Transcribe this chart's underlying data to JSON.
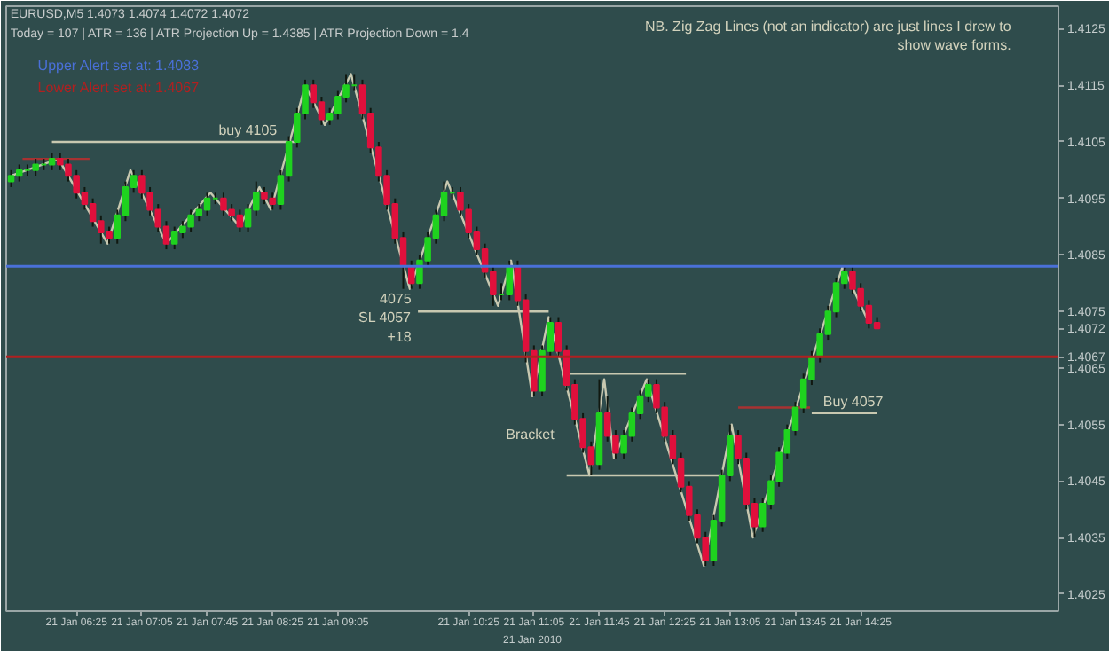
{
  "chart_data": {
    "type": "candlestick",
    "title": "EURUSD,M5  1.4073 1.4074 1.4072 1.4072",
    "subtitle": "Today = 107  |  ATR = 136  |  ATR Projection Up = 1.4385  |  ATR Projection Down = 1.4",
    "x": [
      "2010-01-21T05:45",
      "2010-01-21T05:50",
      "2010-01-21T05:55",
      "2010-01-21T06:00",
      "2010-01-21T06:05",
      "2010-01-21T06:10",
      "2010-01-21T06:15",
      "2010-01-21T06:20",
      "2010-01-21T06:25",
      "2010-01-21T06:30",
      "2010-01-21T06:35",
      "2010-01-21T06:40",
      "2010-01-21T06:45",
      "2010-01-21T06:50",
      "2010-01-21T06:55",
      "2010-01-21T07:00",
      "2010-01-21T07:05",
      "2010-01-21T07:10",
      "2010-01-21T07:15",
      "2010-01-21T07:20",
      "2010-01-21T07:25",
      "2010-01-21T07:30",
      "2010-01-21T07:35",
      "2010-01-21T07:40",
      "2010-01-21T07:45",
      "2010-01-21T07:50",
      "2010-01-21T07:55",
      "2010-01-21T08:00",
      "2010-01-21T08:05",
      "2010-01-21T08:10",
      "2010-01-21T08:15",
      "2010-01-21T08:20",
      "2010-01-21T08:25",
      "2010-01-21T08:30",
      "2010-01-21T08:35",
      "2010-01-21T08:40",
      "2010-01-21T08:45",
      "2010-01-21T08:50",
      "2010-01-21T08:55",
      "2010-01-21T09:00",
      "2010-01-21T09:05",
      "2010-01-21T09:10",
      "2010-01-21T09:15",
      "2010-01-21T09:20",
      "2010-01-21T09:25",
      "2010-01-21T09:30",
      "2010-01-21T09:35",
      "2010-01-21T09:40",
      "2010-01-21T09:45",
      "2010-01-21T09:50",
      "2010-01-21T09:55",
      "2010-01-21T10:00",
      "2010-01-21T10:05",
      "2010-01-21T10:10",
      "2010-01-21T10:15",
      "2010-01-21T10:20",
      "2010-01-21T10:25",
      "2010-01-21T10:30",
      "2010-01-21T10:35",
      "2010-01-21T10:40",
      "2010-01-21T10:45",
      "2010-01-21T10:50",
      "2010-01-21T10:55",
      "2010-01-21T11:00",
      "2010-01-21T11:05",
      "2010-01-21T11:10",
      "2010-01-21T11:15",
      "2010-01-21T11:20",
      "2010-01-21T11:25",
      "2010-01-21T11:30",
      "2010-01-21T11:35",
      "2010-01-21T11:40",
      "2010-01-21T11:45",
      "2010-01-21T11:50",
      "2010-01-21T11:55",
      "2010-01-21T12:00",
      "2010-01-21T12:05",
      "2010-01-21T12:10",
      "2010-01-21T12:15",
      "2010-01-21T12:20",
      "2010-01-21T12:25",
      "2010-01-21T12:30",
      "2010-01-21T12:35",
      "2010-01-21T12:40",
      "2010-01-21T12:45",
      "2010-01-21T12:50",
      "2010-01-21T12:55",
      "2010-01-21T13:00",
      "2010-01-21T13:05",
      "2010-01-21T13:10",
      "2010-01-21T13:15",
      "2010-01-21T13:20",
      "2010-01-21T13:25",
      "2010-01-21T13:30",
      "2010-01-21T13:35",
      "2010-01-21T13:40",
      "2010-01-21T13:45",
      "2010-01-21T13:50",
      "2010-01-21T13:55",
      "2010-01-21T14:00",
      "2010-01-21T14:05",
      "2010-01-21T14:10",
      "2010-01-21T14:15",
      "2010-01-21T14:20",
      "2010-01-21T14:25",
      "2010-01-21T14:30",
      "2010-01-21T14:35"
    ],
    "ohlc": [
      [
        1.4098,
        1.41,
        1.4097,
        1.4099
      ],
      [
        1.4099,
        1.4101,
        1.4098,
        1.41
      ],
      [
        1.41,
        1.4101,
        1.4099,
        1.41
      ],
      [
        1.41,
        1.4102,
        1.4099,
        1.4101
      ],
      [
        1.4101,
        1.4102,
        1.41,
        1.4101
      ],
      [
        1.4101,
        1.4103,
        1.41,
        1.4102
      ],
      [
        1.4102,
        1.4103,
        1.41,
        1.4101
      ],
      [
        1.4101,
        1.4102,
        1.4098,
        1.4099
      ],
      [
        1.4099,
        1.41,
        1.4095,
        1.4096
      ],
      [
        1.4096,
        1.4097,
        1.4093,
        1.4094
      ],
      [
        1.4094,
        1.4095,
        1.409,
        1.4091
      ],
      [
        1.4091,
        1.4092,
        1.4087,
        1.4089
      ],
      [
        1.4089,
        1.409,
        1.4087,
        1.4088
      ],
      [
        1.4088,
        1.4093,
        1.4087,
        1.4092
      ],
      [
        1.4092,
        1.4098,
        1.4091,
        1.4097
      ],
      [
        1.4097,
        1.41,
        1.4096,
        1.4099
      ],
      [
        1.4099,
        1.41,
        1.4095,
        1.4096
      ],
      [
        1.4096,
        1.4097,
        1.4092,
        1.4093
      ],
      [
        1.4093,
        1.4094,
        1.4089,
        1.409
      ],
      [
        1.409,
        1.4091,
        1.4086,
        1.4087
      ],
      [
        1.4087,
        1.409,
        1.4086,
        1.4089
      ],
      [
        1.4089,
        1.4091,
        1.4088,
        1.409
      ],
      [
        1.409,
        1.4093,
        1.4089,
        1.4092
      ],
      [
        1.4092,
        1.4094,
        1.4091,
        1.4093
      ],
      [
        1.4093,
        1.4096,
        1.4092,
        1.4095
      ],
      [
        1.4095,
        1.4096,
        1.4094,
        1.4095
      ],
      [
        1.4095,
        1.4096,
        1.4092,
        1.4093
      ],
      [
        1.4093,
        1.4094,
        1.4091,
        1.4092
      ],
      [
        1.4092,
        1.4093,
        1.4089,
        1.409
      ],
      [
        1.409,
        1.4094,
        1.4089,
        1.4093
      ],
      [
        1.4093,
        1.4098,
        1.4092,
        1.4096
      ],
      [
        1.4096,
        1.4097,
        1.4094,
        1.4095
      ],
      [
        1.4095,
        1.4096,
        1.4093,
        1.4094
      ],
      [
        1.4094,
        1.41,
        1.4093,
        1.4099
      ],
      [
        1.4099,
        1.4106,
        1.4098,
        1.4105
      ],
      [
        1.4105,
        1.4111,
        1.4104,
        1.411
      ],
      [
        1.411,
        1.4116,
        1.4109,
        1.4115
      ],
      [
        1.4115,
        1.4116,
        1.4111,
        1.4112
      ],
      [
        1.4112,
        1.4113,
        1.4108,
        1.4109
      ],
      [
        1.4109,
        1.4111,
        1.4108,
        1.411
      ],
      [
        1.411,
        1.4114,
        1.4109,
        1.4113
      ],
      [
        1.4113,
        1.4117,
        1.4112,
        1.4115
      ],
      [
        1.4115,
        1.4117,
        1.4114,
        1.4115
      ],
      [
        1.4115,
        1.4116,
        1.4109,
        1.411
      ],
      [
        1.411,
        1.4111,
        1.4103,
        1.4104
      ],
      [
        1.4104,
        1.4105,
        1.4098,
        1.4099
      ],
      [
        1.4099,
        1.41,
        1.4093,
        1.4094
      ],
      [
        1.4094,
        1.4095,
        1.4087,
        1.4088
      ],
      [
        1.4088,
        1.4089,
        1.4079,
        1.4083
      ],
      [
        1.4083,
        1.4084,
        1.4079,
        1.408
      ],
      [
        1.408,
        1.4085,
        1.4079,
        1.4084
      ],
      [
        1.4084,
        1.4089,
        1.4083,
        1.4088
      ],
      [
        1.4088,
        1.4093,
        1.4087,
        1.4092
      ],
      [
        1.4092,
        1.4098,
        1.4091,
        1.4096
      ],
      [
        1.4096,
        1.4097,
        1.4095,
        1.4096
      ],
      [
        1.4096,
        1.4097,
        1.4092,
        1.4093
      ],
      [
        1.4093,
        1.4094,
        1.4088,
        1.4089
      ],
      [
        1.4089,
        1.409,
        1.4085,
        1.4086
      ],
      [
        1.4086,
        1.4087,
        1.4081,
        1.4082
      ],
      [
        1.4082,
        1.4083,
        1.4076,
        1.4078
      ],
      [
        1.4078,
        1.408,
        1.4077,
        1.4078
      ],
      [
        1.4078,
        1.4084,
        1.4077,
        1.4083
      ],
      [
        1.4083,
        1.4084,
        1.4076,
        1.4077
      ],
      [
        1.4077,
        1.4078,
        1.4066,
        1.4068
      ],
      [
        1.4068,
        1.4069,
        1.406,
        1.4061
      ],
      [
        1.4061,
        1.4069,
        1.406,
        1.4068
      ],
      [
        1.4068,
        1.4074,
        1.4067,
        1.4073
      ],
      [
        1.4073,
        1.4074,
        1.4067,
        1.4068
      ],
      [
        1.4068,
        1.4069,
        1.4061,
        1.4062
      ],
      [
        1.4062,
        1.4063,
        1.4055,
        1.4056
      ],
      [
        1.4056,
        1.4057,
        1.405,
        1.4051
      ],
      [
        1.4051,
        1.4052,
        1.4046,
        1.4048
      ],
      [
        1.4048,
        1.4063,
        1.4047,
        1.4057
      ],
      [
        1.4057,
        1.406,
        1.4052,
        1.4053
      ],
      [
        1.4053,
        1.4054,
        1.4049,
        1.405
      ],
      [
        1.405,
        1.4054,
        1.4049,
        1.4053
      ],
      [
        1.4053,
        1.4058,
        1.4052,
        1.4057
      ],
      [
        1.4057,
        1.4061,
        1.4056,
        1.406
      ],
      [
        1.406,
        1.4063,
        1.4059,
        1.4062
      ],
      [
        1.4062,
        1.4063,
        1.4057,
        1.4058
      ],
      [
        1.4058,
        1.4059,
        1.4052,
        1.4053
      ],
      [
        1.4053,
        1.4054,
        1.4048,
        1.4049
      ],
      [
        1.4049,
        1.405,
        1.4043,
        1.4044
      ],
      [
        1.4044,
        1.4045,
        1.4038,
        1.4039
      ],
      [
        1.4039,
        1.404,
        1.4034,
        1.4035
      ],
      [
        1.4035,
        1.4036,
        1.403,
        1.4031
      ],
      [
        1.4031,
        1.4039,
        1.403,
        1.4038
      ],
      [
        1.4038,
        1.4047,
        1.4037,
        1.4046
      ],
      [
        1.4046,
        1.4055,
        1.4045,
        1.4053
      ],
      [
        1.4053,
        1.4054,
        1.4048,
        1.4049
      ],
      [
        1.4049,
        1.405,
        1.404,
        1.4041
      ],
      [
        1.4041,
        1.4042,
        1.4035,
        1.4037
      ],
      [
        1.4037,
        1.4042,
        1.4036,
        1.4041
      ],
      [
        1.4041,
        1.4046,
        1.404,
        1.4045
      ],
      [
        1.4045,
        1.4051,
        1.4044,
        1.405
      ],
      [
        1.405,
        1.4055,
        1.4049,
        1.4054
      ],
      [
        1.4054,
        1.4059,
        1.4053,
        1.4058
      ],
      [
        1.4058,
        1.4064,
        1.4057,
        1.4063
      ],
      [
        1.4063,
        1.4068,
        1.4062,
        1.4067
      ],
      [
        1.4067,
        1.4072,
        1.4066,
        1.4071
      ],
      [
        1.4071,
        1.4076,
        1.407,
        1.4075
      ],
      [
        1.4075,
        1.4081,
        1.4074,
        1.408
      ],
      [
        1.408,
        1.4083,
        1.4079,
        1.4082
      ],
      [
        1.4082,
        1.4083,
        1.4078,
        1.4079
      ],
      [
        1.4079,
        1.408,
        1.4075,
        1.4076
      ],
      [
        1.4076,
        1.4077,
        1.4072,
        1.4073
      ],
      [
        1.4073,
        1.4074,
        1.4072,
        1.4072
      ]
    ],
    "colors": [
      "#1fd21f",
      "#1fd21f",
      "#1fd21f",
      "#1fd21f",
      "#1fd21f",
      "#1fd21f",
      "#e0103c",
      "#e0103c",
      "#e0103c",
      "#e0103c",
      "#e0103c",
      "#e0103c",
      "#e0103c",
      "#1fd21f",
      "#1fd21f",
      "#1fd21f",
      "#e0103c",
      "#e0103c",
      "#e0103c",
      "#e0103c",
      "#1fd21f",
      "#1fd21f",
      "#1fd21f",
      "#1fd21f",
      "#1fd21f",
      "#1fd21f",
      "#e0103c",
      "#e0103c",
      "#e0103c",
      "#1fd21f",
      "#1fd21f",
      "#e0103c",
      "#e0103c",
      "#1fd21f",
      "#1fd21f",
      "#1fd21f",
      "#1fd21f",
      "#e0103c",
      "#e0103c",
      "#1fd21f",
      "#1fd21f",
      "#1fd21f",
      "#1fd21f",
      "#e0103c",
      "#e0103c",
      "#e0103c",
      "#e0103c",
      "#e0103c",
      "#e0103c",
      "#e0103c",
      "#1fd21f",
      "#1fd21f",
      "#1fd21f",
      "#1fd21f",
      "#1fd21f",
      "#e0103c",
      "#e0103c",
      "#e0103c",
      "#e0103c",
      "#e0103c",
      "#1fd21f",
      "#1fd21f",
      "#e0103c",
      "#e0103c",
      "#e0103c",
      "#1fd21f",
      "#1fd21f",
      "#e0103c",
      "#e0103c",
      "#e0103c",
      "#e0103c",
      "#e0103c",
      "#1fd21f",
      "#e0103c",
      "#e0103c",
      "#1fd21f",
      "#1fd21f",
      "#1fd21f",
      "#1fd21f",
      "#e0103c",
      "#e0103c",
      "#e0103c",
      "#e0103c",
      "#e0103c",
      "#e0103c",
      "#e0103c",
      "#1fd21f",
      "#1fd21f",
      "#1fd21f",
      "#e0103c",
      "#e0103c",
      "#e0103c",
      "#1fd21f",
      "#1fd21f",
      "#1fd21f",
      "#1fd21f",
      "#1fd21f",
      "#1fd21f",
      "#1fd21f",
      "#1fd21f",
      "#1fd21f",
      "#1fd21f",
      "#1fd21f",
      "#e0103c",
      "#e0103c",
      "#e0103c",
      "#e0103c"
    ],
    "xlabel": "21 Jan 2010",
    "series": [
      {
        "type": "line",
        "color": "#c8c8b0",
        "x": [
          "2010-01-21T05:45",
          "2010-01-21T06:14",
          "2010-01-21T06:44",
          "2010-01-21T06:58",
          "2010-01-21T07:20",
          "2010-01-21T07:47",
          "2010-01-21T08:05",
          "2010-01-21T08:17",
          "2010-01-21T08:24",
          "2010-01-21T08:45",
          "2010-01-21T08:57",
          "2010-01-21T09:13",
          "2010-01-21T09:49",
          "2010-01-21T10:12",
          "2010-01-21T10:43",
          "2010-01-21T10:51",
          "2010-01-21T11:04",
          "2010-01-21T11:14",
          "2010-01-21T11:39",
          "2010-01-21T11:48",
          "2010-01-21T11:54",
          "2010-01-21T12:14",
          "2010-01-21T12:49",
          "2010-01-21T13:06",
          "2010-01-21T13:19",
          "2010-01-21T14:14",
          "2010-01-21T14:30"
        ],
        "values": [
          1.4099,
          1.4102,
          1.4087,
          1.41,
          1.4087,
          1.4096,
          1.409,
          1.4097,
          1.4093,
          1.4115,
          1.4108,
          1.4117,
          1.4079,
          1.4098,
          1.4076,
          1.4084,
          1.406,
          1.4074,
          1.4046,
          1.4063,
          1.4049,
          1.4063,
          1.403,
          1.4055,
          1.4035,
          1.4083,
          1.4073
        ]
      },
      {
        "type": "line",
        "color": "#a83232",
        "x": [
          "2010-01-21T05:52",
          "2010-01-21T06:33"
        ],
        "values": [
          1.4102,
          1.4102
        ]
      },
      {
        "type": "line",
        "color": "#c8c8b0",
        "x": [
          "2010-01-21T06:10",
          "2010-01-21T08:40"
        ],
        "values": [
          1.4105,
          1.4105
        ]
      },
      {
        "type": "line",
        "color": "#c8c8b0",
        "x": [
          "2010-01-21T09:54",
          "2010-01-21T11:14"
        ],
        "values": [
          1.4075,
          1.4075
        ]
      },
      {
        "type": "line",
        "color": "#c8c8b0",
        "x": [
          "2010-01-21T11:22",
          "2010-01-21T12:38"
        ],
        "values": [
          1.4064,
          1.4064
        ]
      },
      {
        "type": "line",
        "color": "#c8c8b0",
        "x": [
          "2010-01-21T11:25",
          "2010-01-21T12:59"
        ],
        "values": [
          1.4046,
          1.4046
        ]
      },
      {
        "type": "line",
        "color": "#a83232",
        "x": [
          "2010-01-21T13:10",
          "2010-01-21T13:54"
        ],
        "values": [
          1.4058,
          1.4058
        ]
      },
      {
        "type": "line",
        "color": "#c8c8b0",
        "x": [
          "2010-01-21T13:55",
          "2010-01-21T14:35"
        ],
        "values": [
          1.4057,
          1.4057
        ]
      }
    ],
    "ref_lines": [
      {
        "axis": "y",
        "value": 1.4083,
        "label": "Upper Alert set at: 1.4083",
        "color": "#4a70d8"
      },
      {
        "axis": "y",
        "value": 1.4067,
        "label": "Lower Alert set at: 1.4067",
        "color": "#b02020"
      }
    ],
    "annotations": [
      "NB. Zig Zag Lines (not an indicator) are just lines I drew to\nshow wave forms.",
      "4075\nSL 4057\n+18",
      "Bracket",
      {
        "text": "buy 4105",
        "x": "2010-01-21T07:52",
        "y": 1.4105
      },
      {
        "text": "Buy 4057",
        "x": "2010-01-21T14:02",
        "y": 1.4057
      }
    ],
    "xlim": [
      "2010-01-21T05:42",
      "2010-01-21T16:26"
    ],
    "xticks": [
      {
        "value": "2010-01-21T06:25",
        "label": "21 Jan 06:25"
      },
      {
        "value": "2010-01-21T07:05",
        "label": "21 Jan 07:05"
      },
      {
        "value": "2010-01-21T07:45",
        "label": "21 Jan 07:45"
      },
      {
        "value": "2010-01-21T08:25",
        "label": "21 Jan 08:25"
      },
      {
        "value": "2010-01-21T09:05",
        "label": "21 Jan 09:05"
      },
      {
        "value": "2010-01-21T10:25",
        "label": "21 Jan 10:25"
      },
      {
        "value": "2010-01-21T11:05",
        "label": "21 Jan 11:05"
      },
      {
        "value": "2010-01-21T11:45",
        "label": "21 Jan 11:45"
      },
      {
        "value": "2010-01-21T12:25",
        "label": "21 Jan 12:25"
      },
      {
        "value": "2010-01-21T13:05",
        "label": "21 Jan 13:05"
      },
      {
        "value": "2010-01-21T13:45",
        "label": "21 Jan 13:45"
      },
      {
        "value": "2010-01-21T14:25",
        "label": "21 Jan 14:25"
      }
    ],
    "ylim": [
      1.4022,
      1.4129
    ],
    "yticks": [
      1.4125,
      1.4115,
      1.4105,
      1.4095,
      1.4085,
      1.4075,
      1.4072,
      1.4067,
      1.4065,
      1.4055,
      1.4045,
      1.4035,
      1.4025
    ]
  }
}
